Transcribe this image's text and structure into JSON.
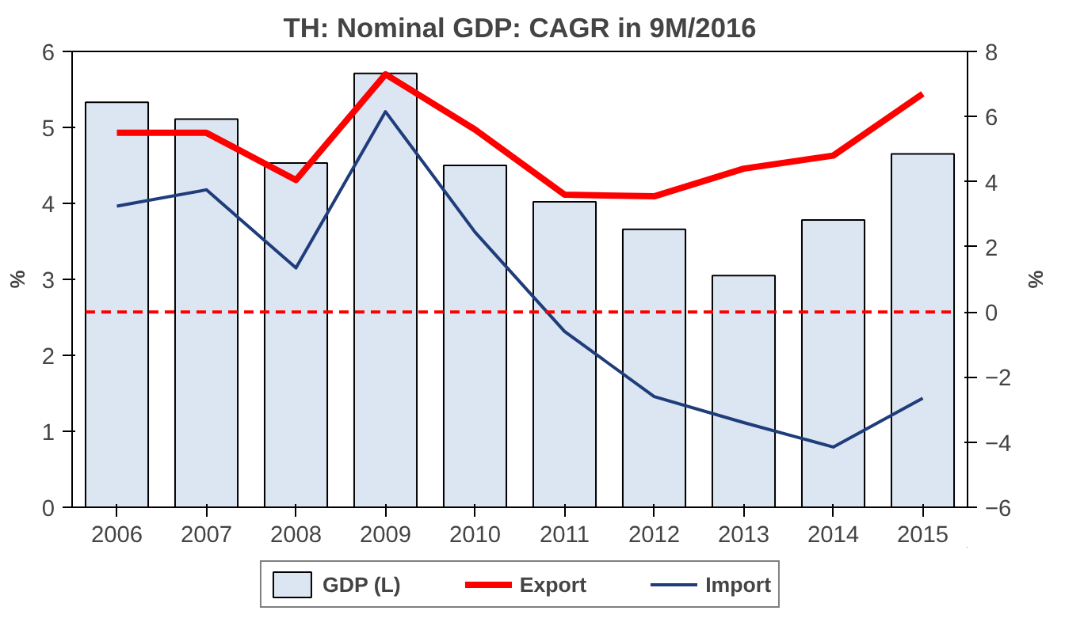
{
  "chart_data": {
    "type": "bar",
    "title": "TH: Nominal GDP: CAGR in 9M/2016",
    "ylabel": "%",
    "y2label": "%",
    "categories": [
      "2006",
      "2007",
      "2008",
      "2009",
      "2010",
      "2011",
      "2012",
      "2013",
      "2014",
      "2015"
    ],
    "series": [
      {
        "name": "GDP (L)",
        "color": "#dce6f2",
        "values": [
          5.33,
          5.11,
          4.53,
          5.71,
          4.5,
          4.02,
          3.66,
          3.05,
          3.78,
          4.65
        ]
      },
      {
        "name": "Export",
        "type": "line",
        "axis": "y2",
        "color": "#ff0000",
        "values": [
          5.5,
          5.5,
          4.05,
          7.3,
          5.6,
          3.6,
          3.55,
          4.4,
          4.8,
          6.7
        ]
      },
      {
        "name": "Import",
        "type": "line",
        "axis": "y2",
        "color": "#1f3d7a",
        "values": [
          3.25,
          3.75,
          1.35,
          6.15,
          2.45,
          -0.6,
          -2.6,
          -3.4,
          -4.15,
          -2.65
        ]
      }
    ],
    "ylim": [
      0,
      6
    ],
    "yticks": [
      0,
      1,
      2,
      3,
      4,
      5,
      6
    ],
    "y2lim": [
      -6,
      8
    ],
    "y2ticks": [
      -6,
      -4,
      -2,
      0,
      2,
      4,
      6,
      8
    ],
    "ref_lines": [
      {
        "axis": "y2",
        "value": 0,
        "color": "#ff0000",
        "line_style": "dashed"
      }
    ],
    "grid": false,
    "legend": "bottom",
    "marker": "none"
  }
}
